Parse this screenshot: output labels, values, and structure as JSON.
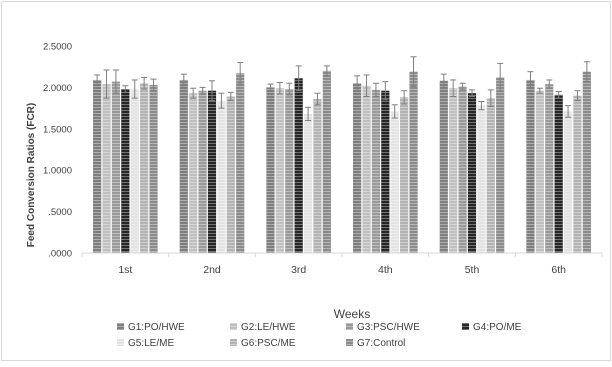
{
  "chart_data": {
    "type": "bar",
    "xlabel": "Weeks",
    "ylabel": "Feed Conversion Ratios (FCR)",
    "ylim": [
      0,
      2.5
    ],
    "yticks": [
      0,
      0.5,
      1.0,
      1.5,
      2.0,
      2.5
    ],
    "ytick_labels": [
      ".0000",
      ".5000",
      "1.0000",
      "1.5000",
      "2.0000",
      "2.5000"
    ],
    "grid": false,
    "legend_position": "bottom",
    "categories": [
      "1st",
      "2nd",
      "3rd",
      "4th",
      "5th",
      "6th"
    ],
    "series": [
      {
        "name": "G1:PO/HWE",
        "color": "#7f7f7f",
        "values": [
          2.09,
          2.09,
          2.0,
          2.05,
          2.08,
          2.09
        ],
        "errors": [
          0.06,
          0.07,
          0.04,
          0.09,
          0.08,
          0.1
        ]
      },
      {
        "name": "G2:LE/HWE",
        "color": "#c0c0c0",
        "values": [
          2.04,
          1.93,
          1.99,
          2.02,
          1.99,
          1.96
        ],
        "errors": [
          0.17,
          0.06,
          0.07,
          0.13,
          0.1,
          0.03
        ]
      },
      {
        "name": "G3:PSC/HWE",
        "color": "#9a9a9a",
        "values": [
          2.07,
          1.96,
          1.98,
          1.97,
          2.01,
          2.04
        ],
        "errors": [
          0.14,
          0.04,
          0.07,
          0.08,
          0.04,
          0.05
        ]
      },
      {
        "name": "G4:PO/ME",
        "color": "#262626",
        "values": [
          1.98,
          1.96,
          2.11,
          1.96,
          1.93,
          1.91
        ],
        "errors": [
          0.04,
          0.12,
          0.15,
          0.11,
          0.04,
          0.04
        ]
      },
      {
        "name": "G5:LE/ME",
        "color": "#e3e3e3",
        "values": [
          1.98,
          1.84,
          1.68,
          1.71,
          1.78,
          1.71
        ],
        "errors": [
          0.11,
          0.09,
          0.08,
          0.08,
          0.05,
          0.07
        ]
      },
      {
        "name": "G6:PSC/ME",
        "color": "#b3b3b3",
        "values": [
          2.05,
          1.89,
          1.86,
          1.88,
          1.87,
          1.9
        ],
        "errors": [
          0.07,
          0.05,
          0.07,
          0.08,
          0.1,
          0.06
        ]
      },
      {
        "name": "G7:Control",
        "color": "#8c8c8c",
        "values": [
          2.03,
          2.17,
          2.2,
          2.19,
          2.12,
          2.19
        ],
        "errors": [
          0.07,
          0.13,
          0.06,
          0.18,
          0.17,
          0.12
        ]
      }
    ]
  }
}
